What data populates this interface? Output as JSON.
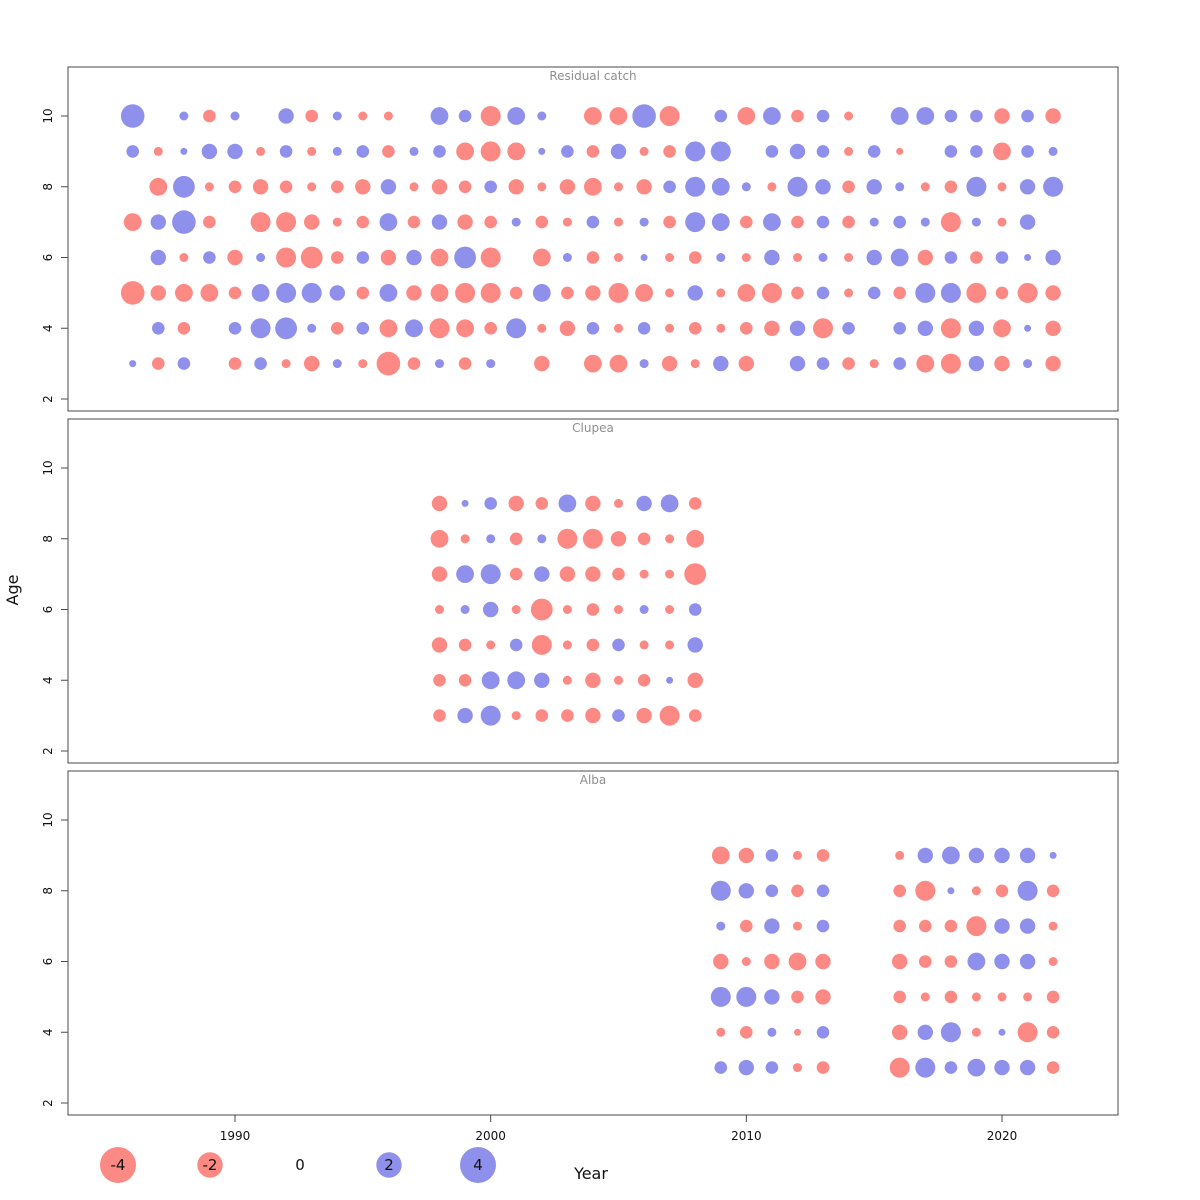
{
  "chart_data": {
    "type": "scatter",
    "subtype": "bubble-residuals-by-age-and-year",
    "xlabel": "Year",
    "ylabel": "Age",
    "x_ticks": [
      1990,
      2000,
      2010,
      2020
    ],
    "y_ticks": [
      2,
      4,
      6,
      8,
      10
    ],
    "xlim": [
      1983.5,
      2024.5
    ],
    "ylim": [
      1.5,
      11
    ],
    "colors": {
      "negative": "#fb6f68",
      "positive": "#7577e6"
    },
    "legend": [
      {
        "label": "-4",
        "value": -4
      },
      {
        "label": "-2",
        "value": -2
      },
      {
        "label": "0",
        "value": 0
      },
      {
        "label": "2",
        "value": 2
      },
      {
        "label": "4",
        "value": 4
      }
    ],
    "panels": [
      {
        "title": "Residual catch",
        "year_start": 1986,
        "year_end": 2022,
        "series": [
          {
            "age": 10,
            "values": [
              3.5,
              null,
              0.5,
              -1,
              0.5,
              null,
              1.5,
              -1,
              0.5,
              -0.5,
              -0.5,
              null,
              2,
              1,
              -2.5,
              2,
              0.5,
              null,
              -2,
              -2,
              3.5,
              -2.5,
              null,
              1,
              -2,
              2,
              -1,
              1,
              -0.5,
              null,
              2,
              2,
              1,
              1,
              -1.5,
              1,
              -1.5
            ]
          },
          {
            "age": 9,
            "values": [
              1,
              -0.5,
              0.3,
              1.5,
              1.5,
              -0.5,
              1,
              -0.5,
              0.5,
              1,
              -1,
              0.5,
              1,
              -2,
              -2.5,
              -2,
              0.3,
              1,
              -1,
              1.5,
              -0.5,
              -1,
              2.5,
              2.5,
              null,
              1,
              1.5,
              1,
              -0.5,
              1,
              -0.3,
              null,
              1,
              1,
              -2,
              1,
              0.5
            ]
          },
          {
            "age": 8,
            "values": [
              null,
              -2,
              3,
              -0.5,
              -1,
              -1.5,
              -1,
              -0.5,
              -1,
              -1.5,
              1.5,
              -0.5,
              -1.5,
              -1,
              1,
              -1.5,
              -0.5,
              -1.5,
              -2,
              -0.5,
              -1.5,
              1,
              2.5,
              2,
              0.5,
              -0.5,
              2.5,
              1.5,
              -1,
              1.5,
              0.5,
              -0.5,
              -1,
              2.5,
              -0.5,
              1.5,
              2.5
            ]
          },
          {
            "age": 7,
            "values": [
              -2,
              1.5,
              3.5,
              -1,
              null,
              -2.5,
              -2.5,
              -1.5,
              -0.5,
              -1,
              2,
              -1,
              1.5,
              -1.5,
              -1,
              0.5,
              -1,
              -0.5,
              1,
              -0.5,
              0.5,
              -1,
              2.5,
              2,
              -1,
              2,
              -1,
              1,
              -1,
              0.5,
              1,
              0.5,
              -2.5,
              0.5,
              -0.5,
              1.5,
              null
            ]
          },
          {
            "age": 6,
            "values": [
              null,
              1.5,
              -0.5,
              1,
              -1.5,
              0.5,
              -2.5,
              -3,
              -1,
              1,
              -1.5,
              1.5,
              -2,
              3,
              -2.5,
              null,
              -2,
              0.5,
              -1,
              -0.5,
              0.3,
              -0.5,
              -1,
              0.5,
              -0.5,
              1.5,
              -0.5,
              0.5,
              -0.5,
              1.5,
              2,
              -1.5,
              1,
              -1,
              1,
              0.3,
              1.5
            ]
          },
          {
            "age": 5,
            "values": [
              -3.5,
              -1.5,
              -2,
              -2,
              -1,
              2,
              2.5,
              2.5,
              1.5,
              -1,
              2,
              -1.5,
              -2,
              -2.5,
              -2.5,
              -1,
              2,
              -1,
              -1.5,
              -2.5,
              -2,
              -0.5,
              1.5,
              -0.5,
              -2,
              -2.5,
              -1,
              1,
              -0.5,
              1,
              -1,
              2.5,
              2.5,
              -2.5,
              -1,
              -2.5,
              -1.5
            ]
          },
          {
            "age": 4,
            "values": [
              null,
              1,
              -1,
              null,
              1,
              2.5,
              3,
              0.5,
              -1,
              1,
              -2,
              2,
              -2.5,
              -2,
              -1,
              2.5,
              -0.5,
              -1.5,
              1,
              -0.5,
              1,
              -0.5,
              -1,
              -0.5,
              -1,
              -1.5,
              1.5,
              -2.5,
              1,
              null,
              1,
              1.5,
              -2.5,
              1.5,
              -2,
              0.3,
              -1.5
            ]
          },
          {
            "age": 3,
            "values": [
              0.3,
              -1,
              1,
              null,
              -1,
              1,
              -0.5,
              -1.5,
              0.5,
              -0.5,
              -3.5,
              -1,
              0.5,
              -1,
              0.5,
              null,
              -1.5,
              null,
              -2,
              -2,
              0.5,
              -1.5,
              -0.5,
              1.5,
              -1.5,
              null,
              1.5,
              1,
              -1,
              -0.5,
              1,
              -2,
              -2.5,
              1.5,
              -1.5,
              0.5,
              -1.5
            ]
          }
        ]
      },
      {
        "title": "Clupea",
        "year_start": 1998,
        "year_end": 2008,
        "series": [
          {
            "age": 9,
            "values": [
              -1.5,
              0.3,
              1,
              -1.5,
              -1,
              2,
              -1.5,
              -0.5,
              1.5,
              2,
              -1
            ]
          },
          {
            "age": 8,
            "values": [
              -2,
              -0.5,
              0.5,
              -1,
              0.5,
              -2.5,
              -2.5,
              -1.5,
              -1,
              -0.5,
              -2
            ]
          },
          {
            "age": 7,
            "values": [
              -1.5,
              2,
              2.5,
              -1,
              1.5,
              -1.5,
              -1.5,
              -1,
              -0.5,
              -0.5,
              -3
            ]
          },
          {
            "age": 6,
            "values": [
              -0.5,
              0.5,
              1.5,
              -0.5,
              -3,
              -0.5,
              -1,
              -0.5,
              0.5,
              -0.5,
              1
            ]
          },
          {
            "age": 5,
            "values": [
              -1.5,
              -1,
              -0.5,
              1,
              -2.5,
              -0.5,
              -1,
              1,
              -0.5,
              -0.5,
              1.5
            ]
          },
          {
            "age": 4,
            "values": [
              -1,
              -1,
              2,
              2,
              1.5,
              -0.5,
              -1.5,
              -0.5,
              -1,
              0.3,
              -1.5
            ]
          },
          {
            "age": 3,
            "values": [
              -1,
              1.5,
              2.5,
              -0.5,
              -1,
              -1,
              -1.5,
              1,
              -1.5,
              -2.5,
              -1
            ]
          }
        ]
      },
      {
        "title": "Alba",
        "year_start": 2009,
        "year_end": 2022,
        "series": [
          {
            "age": 9,
            "values": [
              -2,
              -1.5,
              1,
              -0.5,
              -1,
              null,
              null,
              -0.5,
              1.5,
              2,
              1.5,
              1.5,
              1.5,
              0.3
            ]
          },
          {
            "age": 8,
            "values": [
              2.5,
              1.5,
              1,
              -1,
              1,
              null,
              null,
              -1,
              -2.5,
              0.3,
              -0.5,
              -1,
              2.5,
              -1
            ]
          },
          {
            "age": 7,
            "values": [
              0.5,
              -1,
              1.5,
              -0.5,
              1,
              null,
              null,
              -1,
              -1,
              -1,
              -2.5,
              1.5,
              1.5,
              -0.5
            ]
          },
          {
            "age": 6,
            "values": [
              -1.5,
              -0.5,
              -1.5,
              -2,
              -1.5,
              null,
              null,
              -1.5,
              -1,
              -1,
              2,
              1.5,
              1.5,
              -0.5
            ]
          },
          {
            "age": 5,
            "values": [
              2.5,
              2.5,
              1.5,
              -1,
              -1.5,
              null,
              null,
              -1,
              -0.5,
              -1,
              -0.5,
              -0.5,
              -0.5,
              -1
            ]
          },
          {
            "age": 4,
            "values": [
              -0.5,
              -1,
              0.5,
              -0.3,
              1,
              null,
              null,
              -1.5,
              1.5,
              2.5,
              -0.5,
              0.3,
              -2.5,
              -1
            ]
          },
          {
            "age": 3,
            "values": [
              1,
              1.5,
              1,
              -0.5,
              -1,
              null,
              null,
              -2.5,
              2.5,
              1,
              2,
              1.5,
              1.5,
              -1
            ]
          }
        ]
      }
    ]
  }
}
